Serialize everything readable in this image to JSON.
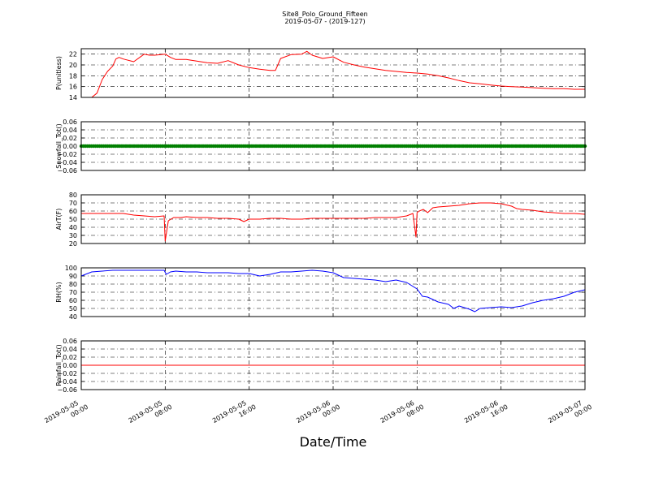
{
  "chart_data": {
    "title": "Site8_Polo_Ground_Fifteen",
    "subtitle": "2019-05-07 - (2019-127)",
    "xlabel": "Date/Time",
    "type": "line",
    "x_range": [
      "2019-05-05 00:00",
      "2019-05-07 00:00"
    ],
    "x_ticks": [
      {
        "line1": "2019-05-05",
        "line2": "00:00",
        "hours": 0
      },
      {
        "line1": "2019-05-05",
        "line2": "08:00",
        "hours": 8
      },
      {
        "line1": "2019-05-05",
        "line2": "16:00",
        "hours": 16
      },
      {
        "line1": "2019-05-06",
        "line2": "00:00",
        "hours": 24
      },
      {
        "line1": "2019-05-06",
        "line2": "08:00",
        "hours": 32
      },
      {
        "line1": "2019-05-06",
        "line2": "16:00",
        "hours": 40
      },
      {
        "line1": "2019-05-07",
        "line2": "00:00",
        "hours": 48
      }
    ],
    "grid": true,
    "panels": [
      {
        "ylabel": "P(unitless)",
        "ylim": [
          14,
          23
        ],
        "yticks": [
          14,
          16,
          18,
          20,
          22
        ],
        "color": "#ff0000",
        "style": "line",
        "series": {
          "x": [
            0,
            1,
            1.5,
            2,
            2.5,
            3,
            3.3,
            3.6,
            4,
            5,
            6,
            6.5,
            7,
            8,
            8.5,
            9,
            10,
            11,
            12,
            13,
            14,
            15,
            16,
            17,
            18,
            18.5,
            19,
            20,
            21,
            21.5,
            22,
            23,
            24,
            25,
            26,
            27,
            28,
            29,
            30,
            31,
            32,
            33,
            34,
            35,
            36,
            37,
            38,
            39,
            40,
            41,
            42,
            43,
            44,
            45,
            46,
            47,
            48
          ],
          "y": [
            14,
            14,
            14.8,
            17.3,
            18.8,
            19.8,
            21.1,
            21.4,
            21.1,
            20.6,
            22,
            21.8,
            21.8,
            22,
            21.4,
            21,
            21,
            20.7,
            20.4,
            20.3,
            20.8,
            20,
            19.5,
            19.2,
            19,
            19,
            21.2,
            21.9,
            22,
            22.5,
            21.8,
            21.2,
            21.5,
            20.5,
            20,
            19.6,
            19.3,
            19,
            18.8,
            18.6,
            18.5,
            18.3,
            18,
            17.6,
            17.1,
            16.7,
            16.5,
            16.3,
            16.1,
            16,
            15.9,
            15.8,
            15.7,
            15.6,
            15.6,
            15.5,
            15.5
          ]
        }
      },
      {
        "ylabel": "Snowfall_Tot()",
        "ylim": [
          -0.06,
          0.06
        ],
        "yticks": [
          -0.06,
          -0.04,
          -0.02,
          0.0,
          0.02,
          0.04,
          0.06
        ],
        "ytick_labels": [
          "−0.06",
          "−0.04",
          "−0.02",
          "0.00",
          "0.02",
          "0.04",
          "0.06"
        ],
        "color": "#008000",
        "style": "markers",
        "series": {
          "x_start": 0,
          "x_end": 48,
          "y_constant": 0
        }
      },
      {
        "ylabel": "AirT(F)",
        "ylim": [
          20,
          80
        ],
        "yticks": [
          20,
          30,
          40,
          50,
          60,
          70,
          80
        ],
        "color": "#ff0000",
        "style": "line",
        "series": {
          "x": [
            0,
            2,
            3,
            4,
            5,
            6,
            7,
            7.9,
            8.0,
            8.3,
            8.8,
            9.5,
            10,
            11,
            12,
            13,
            14,
            15,
            15.5,
            16,
            17,
            18,
            19,
            20,
            21,
            22,
            23,
            24,
            25,
            26,
            27,
            28,
            29,
            30,
            31,
            31.6,
            31.9,
            32.0,
            32.2,
            32.6,
            33,
            33.5,
            34,
            35,
            36,
            37,
            38,
            39,
            40,
            41,
            41.5,
            42,
            43,
            44,
            45,
            46,
            47,
            48
          ],
          "y": [
            57,
            57,
            57,
            57,
            55,
            54,
            53,
            54,
            23,
            48,
            52,
            52,
            53,
            52,
            52,
            51,
            51,
            50,
            47,
            50,
            50,
            51,
            51,
            50,
            50,
            51,
            51,
            51,
            51,
            51,
            51,
            52,
            52,
            52,
            54,
            57,
            28,
            58,
            60,
            62,
            58,
            64,
            65,
            66,
            67,
            69,
            70,
            70,
            69,
            66,
            63,
            62,
            61,
            59,
            58,
            57,
            57,
            56
          ]
        }
      },
      {
        "ylabel": "RH(%)",
        "ylim": [
          40,
          100
        ],
        "yticks": [
          40,
          50,
          60,
          70,
          80,
          90,
          100
        ],
        "color": "#0000ff",
        "style": "line",
        "series": {
          "x": [
            0,
            1,
            2,
            3,
            4,
            5,
            6,
            7,
            7.9,
            8.1,
            8.5,
            9,
            10,
            11,
            12,
            13,
            14,
            15,
            16,
            17,
            18,
            19,
            20,
            21,
            22,
            23,
            24,
            25,
            26,
            27,
            28,
            29,
            30,
            31,
            32,
            32.5,
            33,
            34,
            35,
            35.5,
            36,
            37,
            37.5,
            38,
            39,
            40,
            41,
            42,
            43,
            44,
            45,
            46,
            47,
            48
          ],
          "y": [
            90,
            95,
            96,
            97,
            97,
            97,
            97,
            97,
            97,
            92,
            95,
            96,
            95,
            95,
            94,
            94,
            94,
            93,
            93,
            90,
            92,
            95,
            95,
            96,
            97,
            96,
            94,
            88,
            87,
            86,
            85,
            83,
            85,
            82,
            74,
            65,
            64,
            58,
            55,
            50,
            53,
            49,
            46,
            50,
            51,
            52,
            51,
            53,
            57,
            60,
            62,
            65,
            70,
            73
          ]
        }
      },
      {
        "ylabel": "Rainfall_Tot()",
        "ylim": [
          -0.06,
          0.06
        ],
        "yticks": [
          -0.06,
          -0.04,
          -0.02,
          0.0,
          0.02,
          0.04,
          0.06
        ],
        "ytick_labels": [
          "−0.06",
          "−0.04",
          "−0.02",
          "0.00",
          "0.02",
          "0.04",
          "0.06"
        ],
        "color": "#ff0000",
        "style": "line",
        "series": {
          "x": [
            0,
            48
          ],
          "y": [
            0,
            0
          ]
        }
      }
    ]
  }
}
